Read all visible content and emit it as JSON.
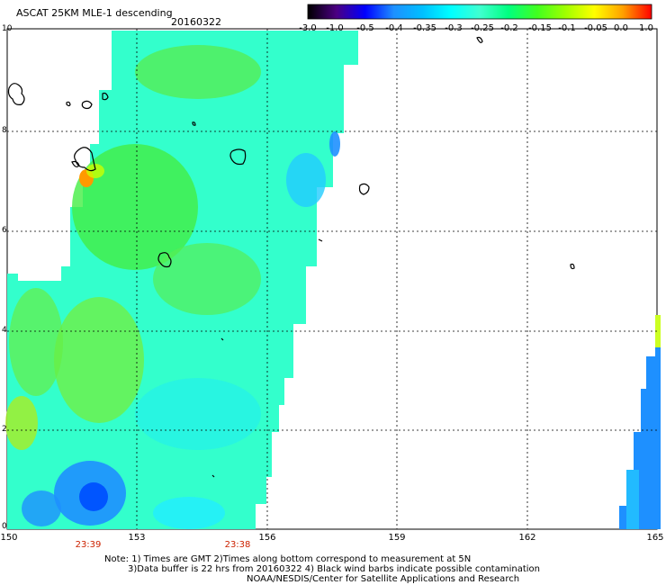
{
  "title": "ASCAT 25KM MLE-1 descending",
  "date": "20160322",
  "colorbar": {
    "labels": [
      "-3.0",
      "-1.0",
      "-0.5",
      "-0.4",
      "-0.35",
      "-0.3",
      "-0.25",
      "-0.2",
      "-0.15",
      "-0.1",
      "-0.05",
      "0.0",
      "1.0"
    ],
    "colors": [
      "#000000",
      "#4b0082",
      "#0000ff",
      "#1e90ff",
      "#00bfff",
      "#00ffff",
      "#40ffd0",
      "#00ff80",
      "#40ff20",
      "#a0ff00",
      "#ffff00",
      "#ffa000",
      "#ff0000"
    ]
  },
  "axes": {
    "y_labels": [
      "10",
      "8",
      "6",
      "4",
      "2",
      "0"
    ],
    "x_labels": [
      "150",
      "153",
      "156",
      "159",
      "162",
      "165"
    ]
  },
  "times": [
    "23:39",
    "23:38"
  ],
  "notes": [
    "Note: 1) Times are GMT 2)Times along bottom correspond to measurement at 5N",
    "3)Data buffer is 22 hrs from 20160322 4) Black wind barbs indicate possible contamination",
    "NOAA/NESDIS/Center for Satellite Applications and Research"
  ]
}
